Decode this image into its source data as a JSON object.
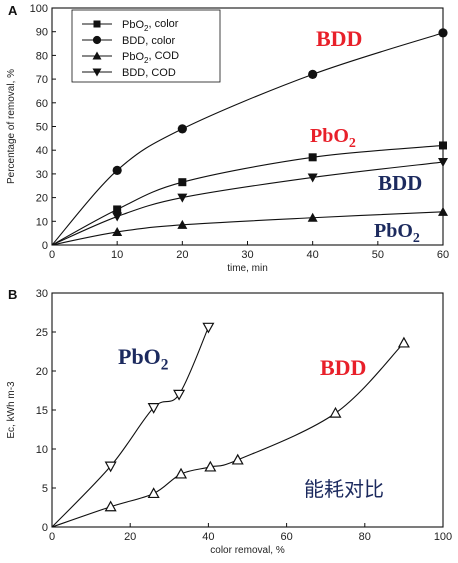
{
  "chart_data": [
    {
      "panel_label": "A",
      "type": "line",
      "xlabel": "time, min",
      "ylabel": "Percentage of removal, %",
      "xlim": [
        0,
        60
      ],
      "ylim": [
        0,
        100
      ],
      "xticks": [
        "0",
        "10",
        "20",
        "30",
        "40",
        "50",
        "60"
      ],
      "yticks": [
        "0",
        "10",
        "20",
        "30",
        "40",
        "50",
        "60",
        "70",
        "80",
        "90",
        "100"
      ],
      "legend_position": "top-left",
      "series": [
        {
          "name": "PbO2, color",
          "marker": "square",
          "x": [
            0,
            10,
            20,
            40,
            60
          ],
          "y": [
            0,
            15,
            26.5,
            37,
            42
          ]
        },
        {
          "name": "BDD, color",
          "marker": "circle",
          "x": [
            0,
            10,
            20,
            40,
            60
          ],
          "y": [
            0,
            31.5,
            49,
            72,
            89.5
          ]
        },
        {
          "name": "PbO2, COD",
          "marker": "triangle-up",
          "x": [
            0,
            10,
            20,
            40,
            60
          ],
          "y": [
            0,
            5.5,
            8.5,
            11.5,
            14
          ]
        },
        {
          "name": "BDD, COD",
          "marker": "triangle-down",
          "x": [
            0,
            10,
            20,
            40,
            60
          ],
          "y": [
            0,
            12,
            20,
            28.5,
            35
          ]
        }
      ],
      "annotations": [
        {
          "text": "BDD",
          "color": "#e8202a"
        },
        {
          "text": "PbO2",
          "color": "#e8202a"
        },
        {
          "text": "BDD",
          "color": "#1c2a5e"
        },
        {
          "text": "PbO2",
          "color": "#1c2a5e"
        }
      ]
    },
    {
      "panel_label": "B",
      "type": "line",
      "xlabel": "color removal, %",
      "ylabel": "Ec, kWh m-3",
      "xlim": [
        0,
        100
      ],
      "ylim": [
        0,
        30
      ],
      "xticks": [
        "0",
        "20",
        "40",
        "60",
        "80",
        "100"
      ],
      "yticks": [
        "0",
        "5",
        "10",
        "15",
        "20",
        "25",
        "30"
      ],
      "series": [
        {
          "name": "PbO2",
          "marker": "open-triangle-down",
          "x": [
            0,
            15,
            26,
            32.5,
            40
          ],
          "y": [
            0,
            7.8,
            15.3,
            17,
            25.6
          ]
        },
        {
          "name": "BDD",
          "marker": "open-triangle-up",
          "x": [
            0,
            15,
            26,
            33,
            40.5,
            47.5,
            72.5,
            90
          ],
          "y": [
            0,
            2.6,
            4.3,
            6.8,
            7.7,
            8.6,
            14.6,
            23.6
          ]
        }
      ],
      "annotations": [
        {
          "text": "PbO2",
          "color": "#1c2a5e"
        },
        {
          "text": "BDD",
          "color": "#e8202a"
        },
        {
          "text": "能耗对比",
          "color": "#1c2a5e"
        }
      ]
    }
  ]
}
